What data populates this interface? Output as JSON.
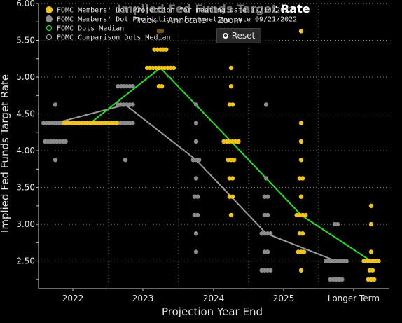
{
  "chart_data": {
    "type": "scatter",
    "title": "Implied Fed Funds Target Rate",
    "xlabel": "Projection Year End",
    "ylabel": "Implied Fed Funds Target Rate",
    "categories": [
      "2022",
      "2023",
      "2024",
      "2025",
      "Longer Term"
    ],
    "ylim": [
      2.125,
      6.0
    ],
    "yticks": [
      "2.50",
      "3.00",
      "3.50",
      "4.00",
      "4.50",
      "5.00",
      "5.50",
      "6.00"
    ],
    "grid": true,
    "legend_position": "top-left",
    "series": [
      {
        "name": "FOMC Members' Dot Projection for meeting date 12/14/2022",
        "kind": "dots",
        "color": "#f0c419",
        "points": [
          {
            "x": "2022",
            "y": 4.375,
            "count": 19
          },
          {
            "x": "2023",
            "y": 5.625,
            "count": 2
          },
          {
            "x": "2023",
            "y": 5.375,
            "count": 5
          },
          {
            "x": "2023",
            "y": 5.125,
            "count": 10
          },
          {
            "x": "2023",
            "y": 4.875,
            "count": 2
          },
          {
            "x": "2024",
            "y": 5.125,
            "count": 1
          },
          {
            "x": "2024",
            "y": 4.875,
            "count": 1
          },
          {
            "x": "2024",
            "y": 4.625,
            "count": 2
          },
          {
            "x": "2024",
            "y": 4.125,
            "count": 6
          },
          {
            "x": "2024",
            "y": 3.875,
            "count": 3
          },
          {
            "x": "2024",
            "y": 3.625,
            "count": 2
          },
          {
            "x": "2024",
            "y": 3.375,
            "count": 2
          },
          {
            "x": "2024",
            "y": 3.125,
            "count": 1
          },
          {
            "x": "2025",
            "y": 5.625,
            "count": 1
          },
          {
            "x": "2025",
            "y": 4.375,
            "count": 1
          },
          {
            "x": "2025",
            "y": 4.125,
            "count": 1
          },
          {
            "x": "2025",
            "y": 3.875,
            "count": 1
          },
          {
            "x": "2025",
            "y": 3.625,
            "count": 2
          },
          {
            "x": "2025",
            "y": 3.375,
            "count": 1
          },
          {
            "x": "2025",
            "y": 3.125,
            "count": 4
          },
          {
            "x": "2025",
            "y": 2.875,
            "count": 2
          },
          {
            "x": "2025",
            "y": 2.625,
            "count": 3
          },
          {
            "x": "2025",
            "y": 2.375,
            "count": 1
          },
          {
            "x": "Longer Term",
            "y": 3.25,
            "count": 1
          },
          {
            "x": "Longer Term",
            "y": 3.0,
            "count": 1
          },
          {
            "x": "Longer Term",
            "y": 2.625,
            "count": 1
          },
          {
            "x": "Longer Term",
            "y": 2.5,
            "count": 6
          },
          {
            "x": "Longer Term",
            "y": 2.375,
            "count": 2
          },
          {
            "x": "Longer Term",
            "y": 2.25,
            "count": 3
          }
        ]
      },
      {
        "name": "FOMC Members' Dot Projections for meeting date 09/21/2022",
        "kind": "dots",
        "color": "#8c8c8c",
        "points": [
          {
            "x": "2022",
            "y": 4.625,
            "count": 1
          },
          {
            "x": "2022",
            "y": 4.375,
            "count": 9
          },
          {
            "x": "2022",
            "y": 4.125,
            "count": 8
          },
          {
            "x": "2022",
            "y": 3.875,
            "count": 1
          },
          {
            "x": "2023",
            "y": 4.875,
            "count": 6
          },
          {
            "x": "2023",
            "y": 4.625,
            "count": 6
          },
          {
            "x": "2023",
            "y": 4.375,
            "count": 6
          },
          {
            "x": "2023",
            "y": 3.875,
            "count": 1
          },
          {
            "x": "2024",
            "y": 4.625,
            "count": 1
          },
          {
            "x": "2024",
            "y": 4.375,
            "count": 1
          },
          {
            "x": "2024",
            "y": 4.125,
            "count": 1
          },
          {
            "x": "2024",
            "y": 3.875,
            "count": 3
          },
          {
            "x": "2024",
            "y": 3.625,
            "count": 1
          },
          {
            "x": "2024",
            "y": 3.375,
            "count": 2
          },
          {
            "x": "2024",
            "y": 3.125,
            "count": 2
          },
          {
            "x": "2024",
            "y": 2.875,
            "count": 1
          },
          {
            "x": "2024",
            "y": 2.625,
            "count": 1
          },
          {
            "x": "2025",
            "y": 4.625,
            "count": 1
          },
          {
            "x": "2025",
            "y": 3.625,
            "count": 1
          },
          {
            "x": "2025",
            "y": 3.375,
            "count": 2
          },
          {
            "x": "2025",
            "y": 3.125,
            "count": 2
          },
          {
            "x": "2025",
            "y": 2.875,
            "count": 4
          },
          {
            "x": "2025",
            "y": 2.625,
            "count": 2
          },
          {
            "x": "2025",
            "y": 2.375,
            "count": 4
          },
          {
            "x": "Longer Term",
            "y": 3.0,
            "count": 2
          },
          {
            "x": "Longer Term",
            "y": 2.5,
            "count": 8
          },
          {
            "x": "Longer Term",
            "y": 2.25,
            "count": 5
          }
        ]
      },
      {
        "name": "FOMC Dots Median",
        "kind": "line",
        "color": "#22e022",
        "values": [
          4.375,
          5.125,
          4.125,
          3.125,
          2.5
        ]
      },
      {
        "name": "FOMC Comparison Dots Median",
        "kind": "line",
        "color": "#9a9a9a",
        "values": [
          4.375,
          4.625,
          3.875,
          2.875,
          2.5
        ]
      }
    ]
  },
  "legend": [
    {
      "label": "FOMC Members' Dot Projection for meeting date 12/14/2022",
      "marker": "filled",
      "color": "#f0c419"
    },
    {
      "label": "FOMC Members' Dot Projections for meeting date 09/21/2022",
      "marker": "filled",
      "color": "#8c8c8c"
    },
    {
      "label": "FOMC Dots Median",
      "marker": "ring",
      "color": "#22e022"
    },
    {
      "label": "FOMC Comparison Dots Median",
      "marker": "ring",
      "color": "#9a9a9a"
    }
  ],
  "toolbar": {
    "track": "Track",
    "annotate": "Annotate",
    "zoom": "Zoom",
    "reset": "Reset"
  }
}
